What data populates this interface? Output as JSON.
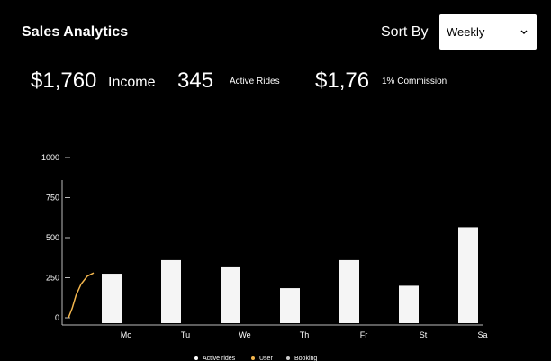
{
  "header": {
    "title": "Sales Analytics",
    "sort_label": "Sort By",
    "sort_value": "Weekly"
  },
  "stats": {
    "income_value": "$1,760",
    "income_label": "Income",
    "rides_value": "345",
    "rides_label": "Active Rides",
    "commission_value": "$1,76",
    "commission_label": "1% Commission"
  },
  "colors": {
    "background": "#000000",
    "bar": "#f5f5f5",
    "user_line": "#f3b64e",
    "axis": "#bbbbbb"
  },
  "chart_data": {
    "type": "bar",
    "categories": [
      "Mo",
      "Tu",
      "We",
      "Th",
      "Fr",
      "St",
      "Sa"
    ],
    "yticks": [
      0,
      250,
      500,
      750,
      1000
    ],
    "ylim": [
      0,
      1000
    ],
    "grid": false,
    "legend_position": "bottom",
    "legend": [
      "Active rides",
      "User",
      "Booking"
    ],
    "series": [
      {
        "name": "Active rides",
        "values": [
          275,
          360,
          315,
          185,
          360,
          200,
          565
        ]
      }
    ],
    "user_line": [
      {
        "x": 0.0,
        "y": 0
      },
      {
        "x": 0.15,
        "y": 60
      },
      {
        "x": 0.3,
        "y": 140
      },
      {
        "x": 0.5,
        "y": 210
      },
      {
        "x": 0.75,
        "y": 260
      },
      {
        "x": 1.0,
        "y": 280
      }
    ]
  }
}
